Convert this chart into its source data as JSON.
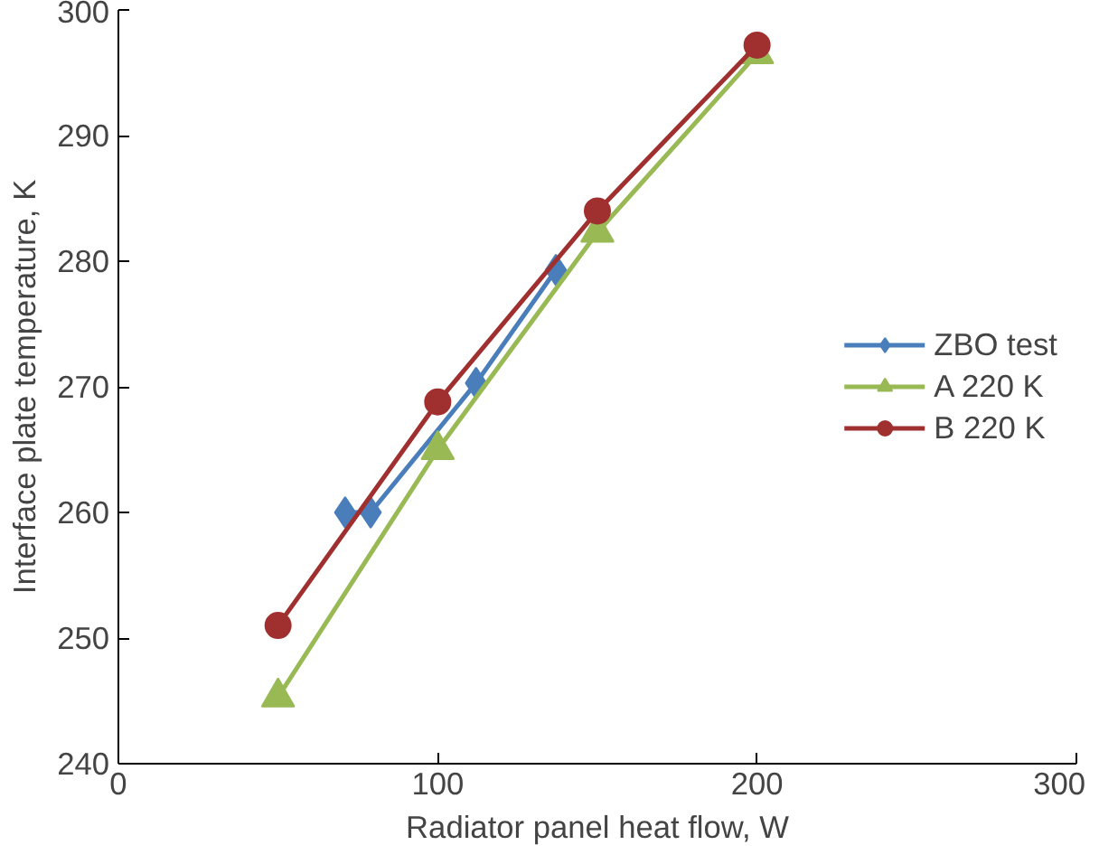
{
  "chart_data": {
    "type": "line",
    "xlabel": "Radiator panel heat flow, W",
    "ylabel": "Interface plate temperature, K",
    "xlim": [
      0,
      300
    ],
    "xticks": [
      0,
      100,
      200,
      300
    ],
    "ylim": [
      240,
      300
    ],
    "yticks": [
      240,
      250,
      260,
      270,
      280,
      290,
      300
    ],
    "grid": false,
    "legend": "right",
    "series": [
      {
        "name": "ZBO test",
        "color": "#4a7ebb",
        "marker": "diamond",
        "x": [
          71,
          79,
          112,
          137
        ],
        "values": [
          260,
          260,
          270.3,
          279.3
        ]
      },
      {
        "name": "A 220 K",
        "color": "#98b954",
        "marker": "triangle",
        "x": [
          50,
          100,
          150,
          200
        ],
        "values": [
          245.3,
          265,
          282.3,
          296.5
        ]
      },
      {
        "name": "B 220 K",
        "color": "#a0302f",
        "marker": "circle",
        "x": [
          50,
          100,
          150,
          200
        ],
        "values": [
          251,
          268.8,
          284,
          297.2
        ]
      }
    ]
  }
}
